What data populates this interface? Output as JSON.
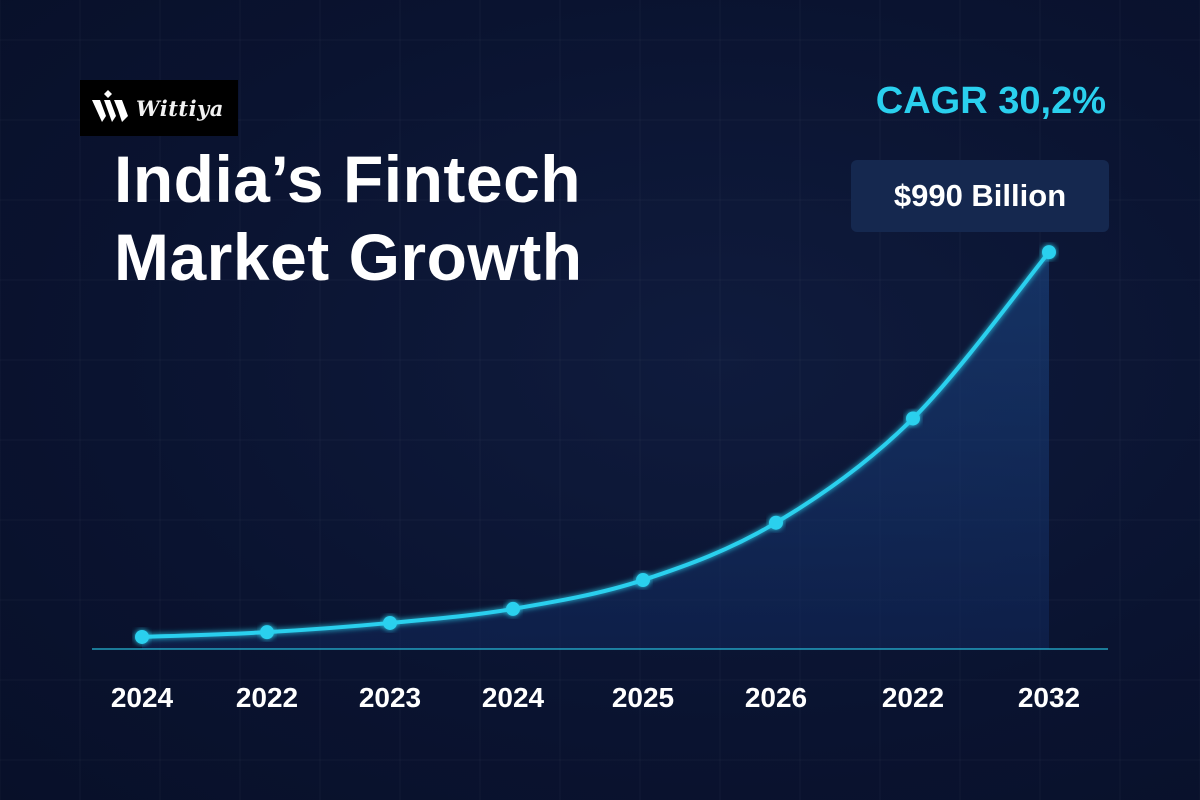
{
  "brand": {
    "logo_text": "Wittiya"
  },
  "header": {
    "title_line1": "India’s Fintech",
    "title_line2": "Market Growth",
    "cagr": "CAGR 30,2%",
    "value_badge": "$990 Billion"
  },
  "colors": {
    "background": "#0b1430",
    "accent": "#2ad0ee",
    "badge_bg": "#15284f",
    "text": "#ffffff"
  },
  "chart_data": {
    "type": "area",
    "title": "India’s Fintech Market Growth",
    "xlabel": "",
    "ylabel": "",
    "categories": [
      "2024",
      "2022",
      "2023",
      "2024",
      "2025",
      "2026",
      "2022",
      "2032"
    ],
    "series": [
      {
        "values": [
          30,
          42,
          65,
          100,
          172,
          315,
          575,
          990
        ]
      }
    ],
    "ylim": [
      0,
      1120
    ],
    "grid": true,
    "legend": "none"
  }
}
